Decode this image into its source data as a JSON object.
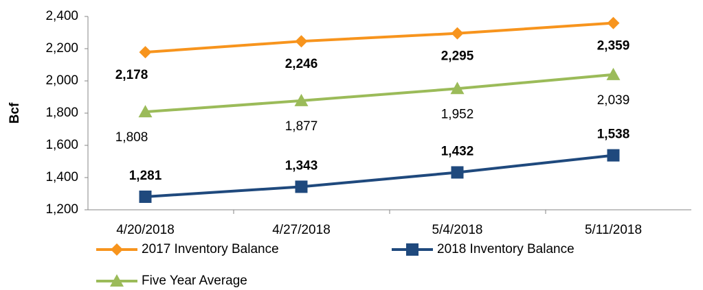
{
  "chart_data": {
    "type": "line",
    "y_label": "Bcf",
    "categories": [
      "4/20/2018",
      "4/27/2018",
      "5/4/2018",
      "5/11/2018"
    ],
    "series": [
      {
        "name": "2017 Inventory Balance",
        "color": "#f7941d",
        "marker": "diamond",
        "label_color": "#f7941d",
        "label_bold": true,
        "values": [
          2178,
          2246,
          2295,
          2359
        ],
        "value_labels": [
          "2,178",
          "2,246",
          "2,295",
          "2,359"
        ]
      },
      {
        "name": "2018 Inventory Balance",
        "color": "#1f497d",
        "marker": "square",
        "label_color": "#1f497d",
        "label_bold": true,
        "values": [
          1281,
          1343,
          1432,
          1538
        ],
        "value_labels": [
          "1,281",
          "1,343",
          "1,432",
          "1,538"
        ]
      },
      {
        "name": "Five Year Average",
        "color": "#9bbb59",
        "marker": "triangle",
        "label_color": "#000000",
        "label_bold": false,
        "values": [
          1808,
          1877,
          1952,
          2039
        ],
        "value_labels": [
          "1,808",
          "1,877",
          "1,952",
          "2,039"
        ]
      }
    ],
    "ylim": [
      1200,
      2400
    ],
    "yticks": [
      {
        "value": 1200,
        "label": "1,200"
      },
      {
        "value": 1400,
        "label": "1,400"
      },
      {
        "value": 1600,
        "label": "1,600"
      },
      {
        "value": 1800,
        "label": "1,800"
      },
      {
        "value": 2000,
        "label": "2,000"
      },
      {
        "value": 2200,
        "label": "2,200"
      },
      {
        "value": 2400,
        "label": "2,400"
      }
    ],
    "grid": false,
    "legend": "bottom"
  }
}
